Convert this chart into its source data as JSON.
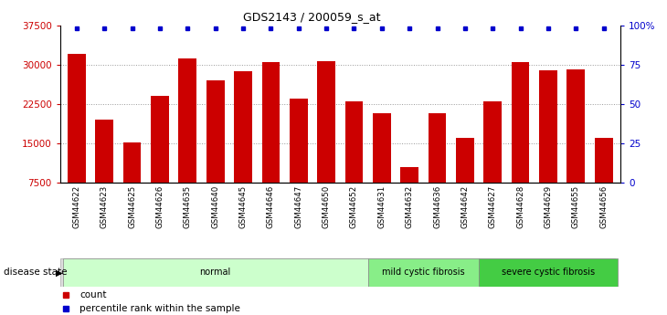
{
  "title": "GDS2143 / 200059_s_at",
  "samples": [
    "GSM44622",
    "GSM44623",
    "GSM44625",
    "GSM44626",
    "GSM44635",
    "GSM44640",
    "GSM44645",
    "GSM44646",
    "GSM44647",
    "GSM44650",
    "GSM44652",
    "GSM44631",
    "GSM44632",
    "GSM44636",
    "GSM44642",
    "GSM44627",
    "GSM44628",
    "GSM44629",
    "GSM44655",
    "GSM44656"
  ],
  "counts": [
    32000,
    19500,
    15200,
    24000,
    31200,
    27000,
    28700,
    30500,
    23500,
    30700,
    23000,
    20700,
    10500,
    20700,
    16000,
    23000,
    30500,
    28900,
    29000,
    16000
  ],
  "group_defs": [
    {
      "label": "normal",
      "start": 0,
      "end": 10,
      "color": "#ccffcc"
    },
    {
      "label": "mild cystic fibrosis",
      "start": 11,
      "end": 14,
      "color": "#88ee88"
    },
    {
      "label": "severe cystic fibrosis",
      "start": 15,
      "end": 19,
      "color": "#44cc44"
    }
  ],
  "bar_color": "#cc0000",
  "percentile_color": "#0000cc",
  "ylim_left": [
    7500,
    37500
  ],
  "ylim_right": [
    0,
    100
  ],
  "yticks_left": [
    7500,
    15000,
    22500,
    30000,
    37500
  ],
  "yticks_right": [
    0,
    25,
    50,
    75,
    100
  ],
  "ytick_labels_right": [
    "0",
    "25",
    "50",
    "75",
    "100%"
  ],
  "ylabel_left_color": "#cc0000",
  "ylabel_right_color": "#0000cc",
  "grid_yticks": [
    15000,
    22500,
    30000
  ],
  "bg_color": "#ffffff",
  "disease_state_label": "disease state",
  "legend_items": [
    "count",
    "percentile rank within the sample"
  ]
}
